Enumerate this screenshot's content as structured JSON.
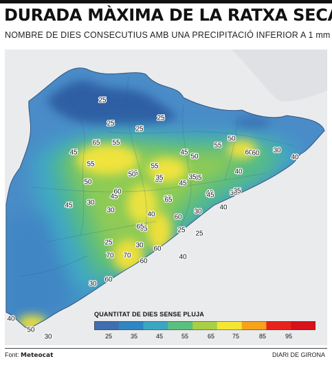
{
  "header": {
    "title": "DURADA MÀXIMA DE LA RATXA SECA",
    "subtitle": "NOMBRE DE DIES CONSECUTIUS AMB UNA PRECIPITACIÓ INFERIOR A 1 mm"
  },
  "map": {
    "labels": [
      "25",
      "25",
      "25",
      "25",
      "50",
      "60",
      "30",
      "40",
      "45",
      "45",
      "65",
      "55",
      "45",
      "50",
      "55",
      "35",
      "55",
      "35",
      "45",
      "35",
      "40",
      "30",
      "60",
      "50",
      "40",
      "65",
      "45",
      "35",
      "30",
      "25",
      "55",
      "60",
      "40",
      "30",
      "65",
      "65",
      "40",
      "30",
      "30",
      "25",
      "50",
      "65",
      "45",
      "60",
      "60",
      "40",
      "25",
      "60",
      "70",
      "35",
      "35",
      "60",
      "70",
      "30",
      "50",
      "30",
      "40"
    ]
  },
  "legend": {
    "title": "QUANTITAT DE DIES SENSE PLUJA",
    "ticks": [
      "25",
      "35",
      "45",
      "55",
      "65",
      "75",
      "85",
      "95"
    ],
    "colors": [
      "#3f6fb0",
      "#2f86c2",
      "#3aa7c2",
      "#5bbf7e",
      "#a8cf45",
      "#f3e635",
      "#f6a21b",
      "#e8231b",
      "#d8121a"
    ]
  },
  "footer": {
    "source_label": "Font:",
    "source_name": "Meteocat",
    "credit": "DIARI DE GIRONA"
  }
}
